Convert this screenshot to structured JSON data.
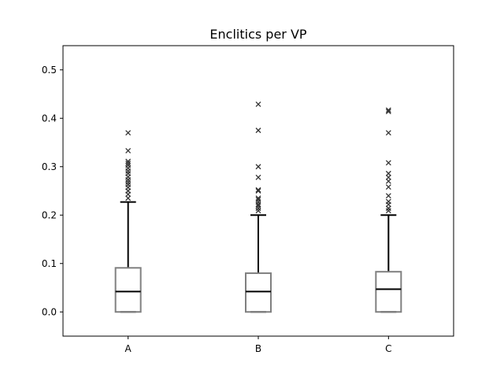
{
  "chart_data": {
    "type": "box",
    "title": "Enclitics per VP",
    "xlabel": "",
    "ylabel": "",
    "categories": [
      "A",
      "B",
      "C"
    ],
    "ylim": [
      -0.05,
      0.55
    ],
    "yticks": [
      0.0,
      0.1,
      0.2,
      0.3,
      0.4,
      0.5
    ],
    "ytick_labels": [
      "0.0",
      "0.1",
      "0.2",
      "0.3",
      "0.4",
      "0.5"
    ],
    "grid": false,
    "boxes": [
      {
        "category": "A",
        "whisker_low": 0.0,
        "q1": 0.0,
        "median": 0.042,
        "q3": 0.091,
        "whisker_high": 0.227,
        "fliers": [
          0.235,
          0.243,
          0.25,
          0.257,
          0.263,
          0.268,
          0.273,
          0.279,
          0.286,
          0.291,
          0.297,
          0.303,
          0.307,
          0.311,
          0.333,
          0.37
        ]
      },
      {
        "category": "B",
        "whisker_low": 0.0,
        "q1": 0.0,
        "median": 0.042,
        "q3": 0.08,
        "whisker_high": 0.2,
        "fliers": [
          0.209,
          0.214,
          0.219,
          0.222,
          0.227,
          0.232,
          0.235,
          0.25,
          0.252,
          0.278,
          0.3,
          0.375,
          0.429
        ]
      },
      {
        "category": "C",
        "whisker_low": 0.0,
        "q1": 0.0,
        "median": 0.047,
        "q3": 0.083,
        "whisker_high": 0.2,
        "fliers": [
          0.209,
          0.214,
          0.222,
          0.228,
          0.24,
          0.258,
          0.27,
          0.278,
          0.286,
          0.308,
          0.37,
          0.414,
          0.417
        ]
      }
    ],
    "colors": {
      "box": "#808080",
      "median": "#000000",
      "whisker": "#000000",
      "flier": "#333333",
      "axes": "#000000"
    }
  }
}
